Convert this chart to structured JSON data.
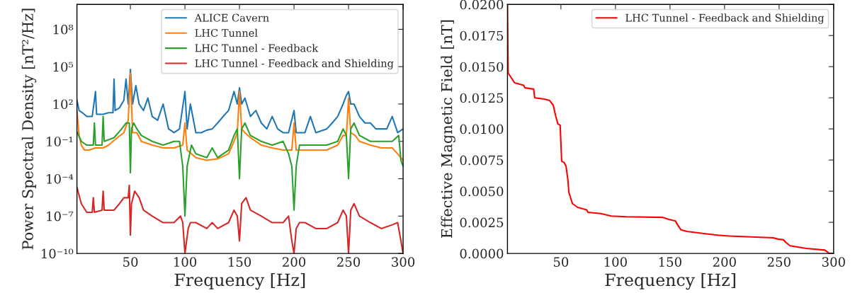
{
  "chart_data": [
    {
      "type": "line",
      "xlabel": "Frequency [Hz]",
      "ylabel": "Power Spectral Density [nT²/Hz]",
      "log": "y",
      "legend": "top right",
      "grid": false,
      "xlim": [
        1,
        300
      ],
      "xticks": [
        50,
        100,
        150,
        200,
        250,
        300
      ],
      "ylim": [
        1e-10,
        10000000000.0
      ],
      "yticks": [
        {
          "value": 1e-10,
          "label": "10⁻¹⁰"
        },
        {
          "value": 1e-07,
          "label": "10⁻⁷"
        },
        {
          "value": 0.0001,
          "label": "10⁻⁴"
        },
        {
          "value": 0.1,
          "label": "10⁻¹"
        },
        {
          "value": 100,
          "label": "10²"
        },
        {
          "value": 100000.0,
          "label": "10⁵"
        },
        {
          "value": 100000000.0,
          "label": "10⁸"
        }
      ],
      "series": [
        {
          "name": "ALICE Cavern",
          "color": "#1f77b4",
          "x": [
            1,
            3,
            6,
            10,
            15,
            18,
            19,
            25,
            30,
            34,
            35,
            36,
            40,
            44,
            46,
            48,
            50,
            52,
            55,
            58,
            62,
            66,
            70,
            75,
            80,
            85,
            90,
            95,
            100,
            102,
            105,
            110,
            115,
            120,
            125,
            130,
            135,
            140,
            145,
            148,
            150,
            152,
            155,
            160,
            165,
            170,
            175,
            180,
            185,
            190,
            195,
            200,
            202,
            210,
            215,
            220,
            230,
            235,
            240,
            245,
            248,
            250,
            252,
            255,
            260,
            265,
            270,
            275,
            280,
            285,
            290,
            295,
            300
          ],
          "values": [
            200,
            30,
            20,
            10,
            10,
            1000,
            15,
            15,
            20,
            20,
            10000.0,
            30,
            50,
            200,
            10000.0,
            100,
            60000.0,
            100,
            3000,
            100,
            30,
            300,
            10,
            5,
            100,
            1,
            0.5,
            1,
            1000,
            1,
            100,
            0.5,
            0.5,
            0.8,
            1,
            3,
            10,
            30,
            1000,
            100,
            2000,
            100,
            300,
            10,
            30,
            3,
            1,
            10,
            1,
            0.5,
            0.5,
            30,
            0.5,
            0.5,
            10,
            0.5,
            1,
            3,
            10,
            100,
            500,
            1000,
            100,
            100,
            10,
            3,
            3,
            1,
            1,
            1,
            10,
            0.5,
            1
          ]
        },
        {
          "name": "LHC Tunnel",
          "color": "#ff7f0e",
          "x": [
            1,
            3,
            5,
            8,
            12,
            18,
            25,
            30,
            38,
            44,
            48,
            50,
            52,
            56,
            60,
            70,
            80,
            90,
            98,
            100,
            102,
            110,
            120,
            130,
            140,
            145,
            148,
            150,
            152,
            155,
            160,
            170,
            180,
            190,
            198,
            200,
            202,
            210,
            220,
            230,
            240,
            245,
            248,
            250,
            252,
            256,
            260,
            270,
            280,
            290,
            295,
            300
          ],
          "values": [
            30,
            0.3,
            0.05,
            0.02,
            0.02,
            0.03,
            0.03,
            0.05,
            0.2,
            0.5,
            5,
            30000.0,
            0.5,
            0.5,
            0.1,
            0.05,
            0.03,
            0.03,
            0.05,
            3,
            0.02,
            0.005,
            0.003,
            0.004,
            0.01,
            0.1,
            0.5,
            1000,
            1,
            0.5,
            0.2,
            0.05,
            0.03,
            0.02,
            0.02,
            3,
            0.02,
            0.02,
            0.02,
            0.02,
            0.05,
            0.3,
            0.3,
            300,
            0.5,
            0.3,
            0.1,
            0.05,
            0.03,
            0.03,
            0.01,
            0.003
          ]
        },
        {
          "name": "LHC Tunnel - Feedback",
          "color": "#2ca02c",
          "x": [
            1,
            5,
            10,
            16,
            17,
            18,
            24,
            25,
            26,
            35,
            42,
            46,
            49,
            50,
            51,
            53,
            56,
            60,
            70,
            80,
            90,
            95,
            98,
            100,
            102,
            106,
            110,
            120,
            125,
            130,
            140,
            145,
            148,
            150,
            152,
            155,
            160,
            170,
            180,
            190,
            195,
            198,
            200,
            202,
            205,
            210,
            220,
            230,
            240,
            245,
            248,
            250,
            252,
            255,
            260,
            270,
            280,
            290,
            296,
            298,
            300
          ],
          "values": [
            0.6,
            0.1,
            0.05,
            0.05,
            3,
            0.05,
            0.05,
            10,
            0.1,
            0.2,
            1,
            3,
            3,
            0.0003,
            1,
            3,
            1,
            0.3,
            0.1,
            0.05,
            0.1,
            0.1,
            0.001,
            1e-07,
            0.001,
            0.05,
            0.01,
            0.005,
            0.03,
            0.005,
            0.02,
            0.3,
            1,
            0.0001,
            1,
            3,
            0.3,
            0.1,
            0.05,
            0.1,
            0.01,
            0.001,
            3e-07,
            0.001,
            0.05,
            0.05,
            0.05,
            0.05,
            0.1,
            1,
            0.3,
            0.0001,
            1,
            3,
            0.3,
            0.1,
            0.1,
            0.1,
            0.3,
            0.003,
            0.001
          ]
        },
        {
          "name": "LHC Tunnel - Feedback and Shielding",
          "color": "#d62728",
          "x": [
            1,
            5,
            10,
            15,
            16,
            17,
            24,
            25,
            26,
            35,
            40,
            44,
            48,
            49,
            50,
            51,
            54,
            58,
            62,
            70,
            80,
            90,
            96,
            98,
            100,
            103,
            105,
            110,
            120,
            125,
            130,
            140,
            145,
            148,
            150,
            152,
            156,
            160,
            170,
            180,
            190,
            195,
            198,
            200,
            202,
            205,
            210,
            220,
            230,
            240,
            245,
            248,
            250,
            252,
            255,
            260,
            270,
            280,
            290,
            295,
            298,
            300
          ],
          "values": [
            2e-05,
            1e-06,
            2e-07,
            2e-07,
            3e-06,
            2e-07,
            3e-07,
            1e-05,
            3e-07,
            3e-07,
            1e-06,
            3e-06,
            3e-06,
            3e-05,
            3e-09,
            1e-06,
            1e-05,
            3e-06,
            3e-07,
            1e-07,
            3e-08,
            3e-08,
            1e-07,
            3e-08,
            1e-10,
            1e-08,
            3e-08,
            3e-08,
            1e-08,
            3e-08,
            1e-08,
            3e-08,
            3e-07,
            1e-07,
            1e-09,
            1e-06,
            3e-06,
            3e-07,
            1e-07,
            3e-08,
            3e-08,
            1e-07,
            1e-09,
            1e-10,
            1e-08,
            3e-08,
            3e-08,
            1e-08,
            1e-08,
            3e-08,
            3e-07,
            1e-07,
            1e-10,
            3e-07,
            1e-06,
            1e-07,
            3e-08,
            1e-08,
            2e-08,
            3e-08,
            1e-09,
            1e-10
          ]
        }
      ]
    },
    {
      "type": "line",
      "xlabel": "Frequency [Hz]",
      "ylabel": "Effective Magnetic Field [nT]",
      "legend": "top right",
      "grid": false,
      "xlim": [
        1,
        300
      ],
      "xticks": [
        50,
        100,
        150,
        200,
        250,
        300
      ],
      "ylim": [
        0,
        0.02
      ],
      "yticks": [
        {
          "value": 0,
          "label": "0.0000"
        },
        {
          "value": 0.0025,
          "label": "0.0025"
        },
        {
          "value": 0.005,
          "label": "0.0050"
        },
        {
          "value": 0.0075,
          "label": "0.0075"
        },
        {
          "value": 0.01,
          "label": "0.0100"
        },
        {
          "value": 0.0125,
          "label": "0.0125"
        },
        {
          "value": 0.015,
          "label": "0.0150"
        },
        {
          "value": 0.0175,
          "label": "0.0175"
        },
        {
          "value": 0.02,
          "label": "0.0200"
        }
      ],
      "series": [
        {
          "name": "LHC Tunnel - Feedback and Shielding",
          "color": "#ff0000",
          "x": [
            1,
            1.6,
            7.5,
            15.8,
            17,
            25,
            26,
            34.7,
            39.4,
            43,
            45.3,
            47.2,
            49.3,
            50.7,
            53,
            54.7,
            56.4,
            57.3,
            60.6,
            65.3,
            73.6,
            74.8,
            86.6,
            96,
            110,
            143,
            149,
            155,
            157,
            160,
            165.6,
            181,
            195,
            204.5,
            244.6,
            249,
            254,
            256,
            260,
            275,
            292,
            296,
            298.7
          ],
          "values": [
            0.02,
            0.0145,
            0.0137,
            0.0135,
            0.0133,
            0.0132,
            0.0125,
            0.0124,
            0.0123,
            0.0119,
            0.011,
            0.0104,
            0.0103,
            0.0074,
            0.0073,
            0.007,
            0.0059,
            0.0049,
            0.004,
            0.0037,
            0.0035,
            0.0033,
            0.0032,
            0.003,
            0.00295,
            0.0029,
            0.00274,
            0.0026,
            0.0023,
            0.0019,
            0.00177,
            0.0016,
            0.00146,
            0.0014,
            0.00126,
            0.00115,
            0.0011,
            0.0009,
            0.00062,
            0.0004,
            0.00027,
            0,
            0
          ]
        }
      ]
    }
  ]
}
